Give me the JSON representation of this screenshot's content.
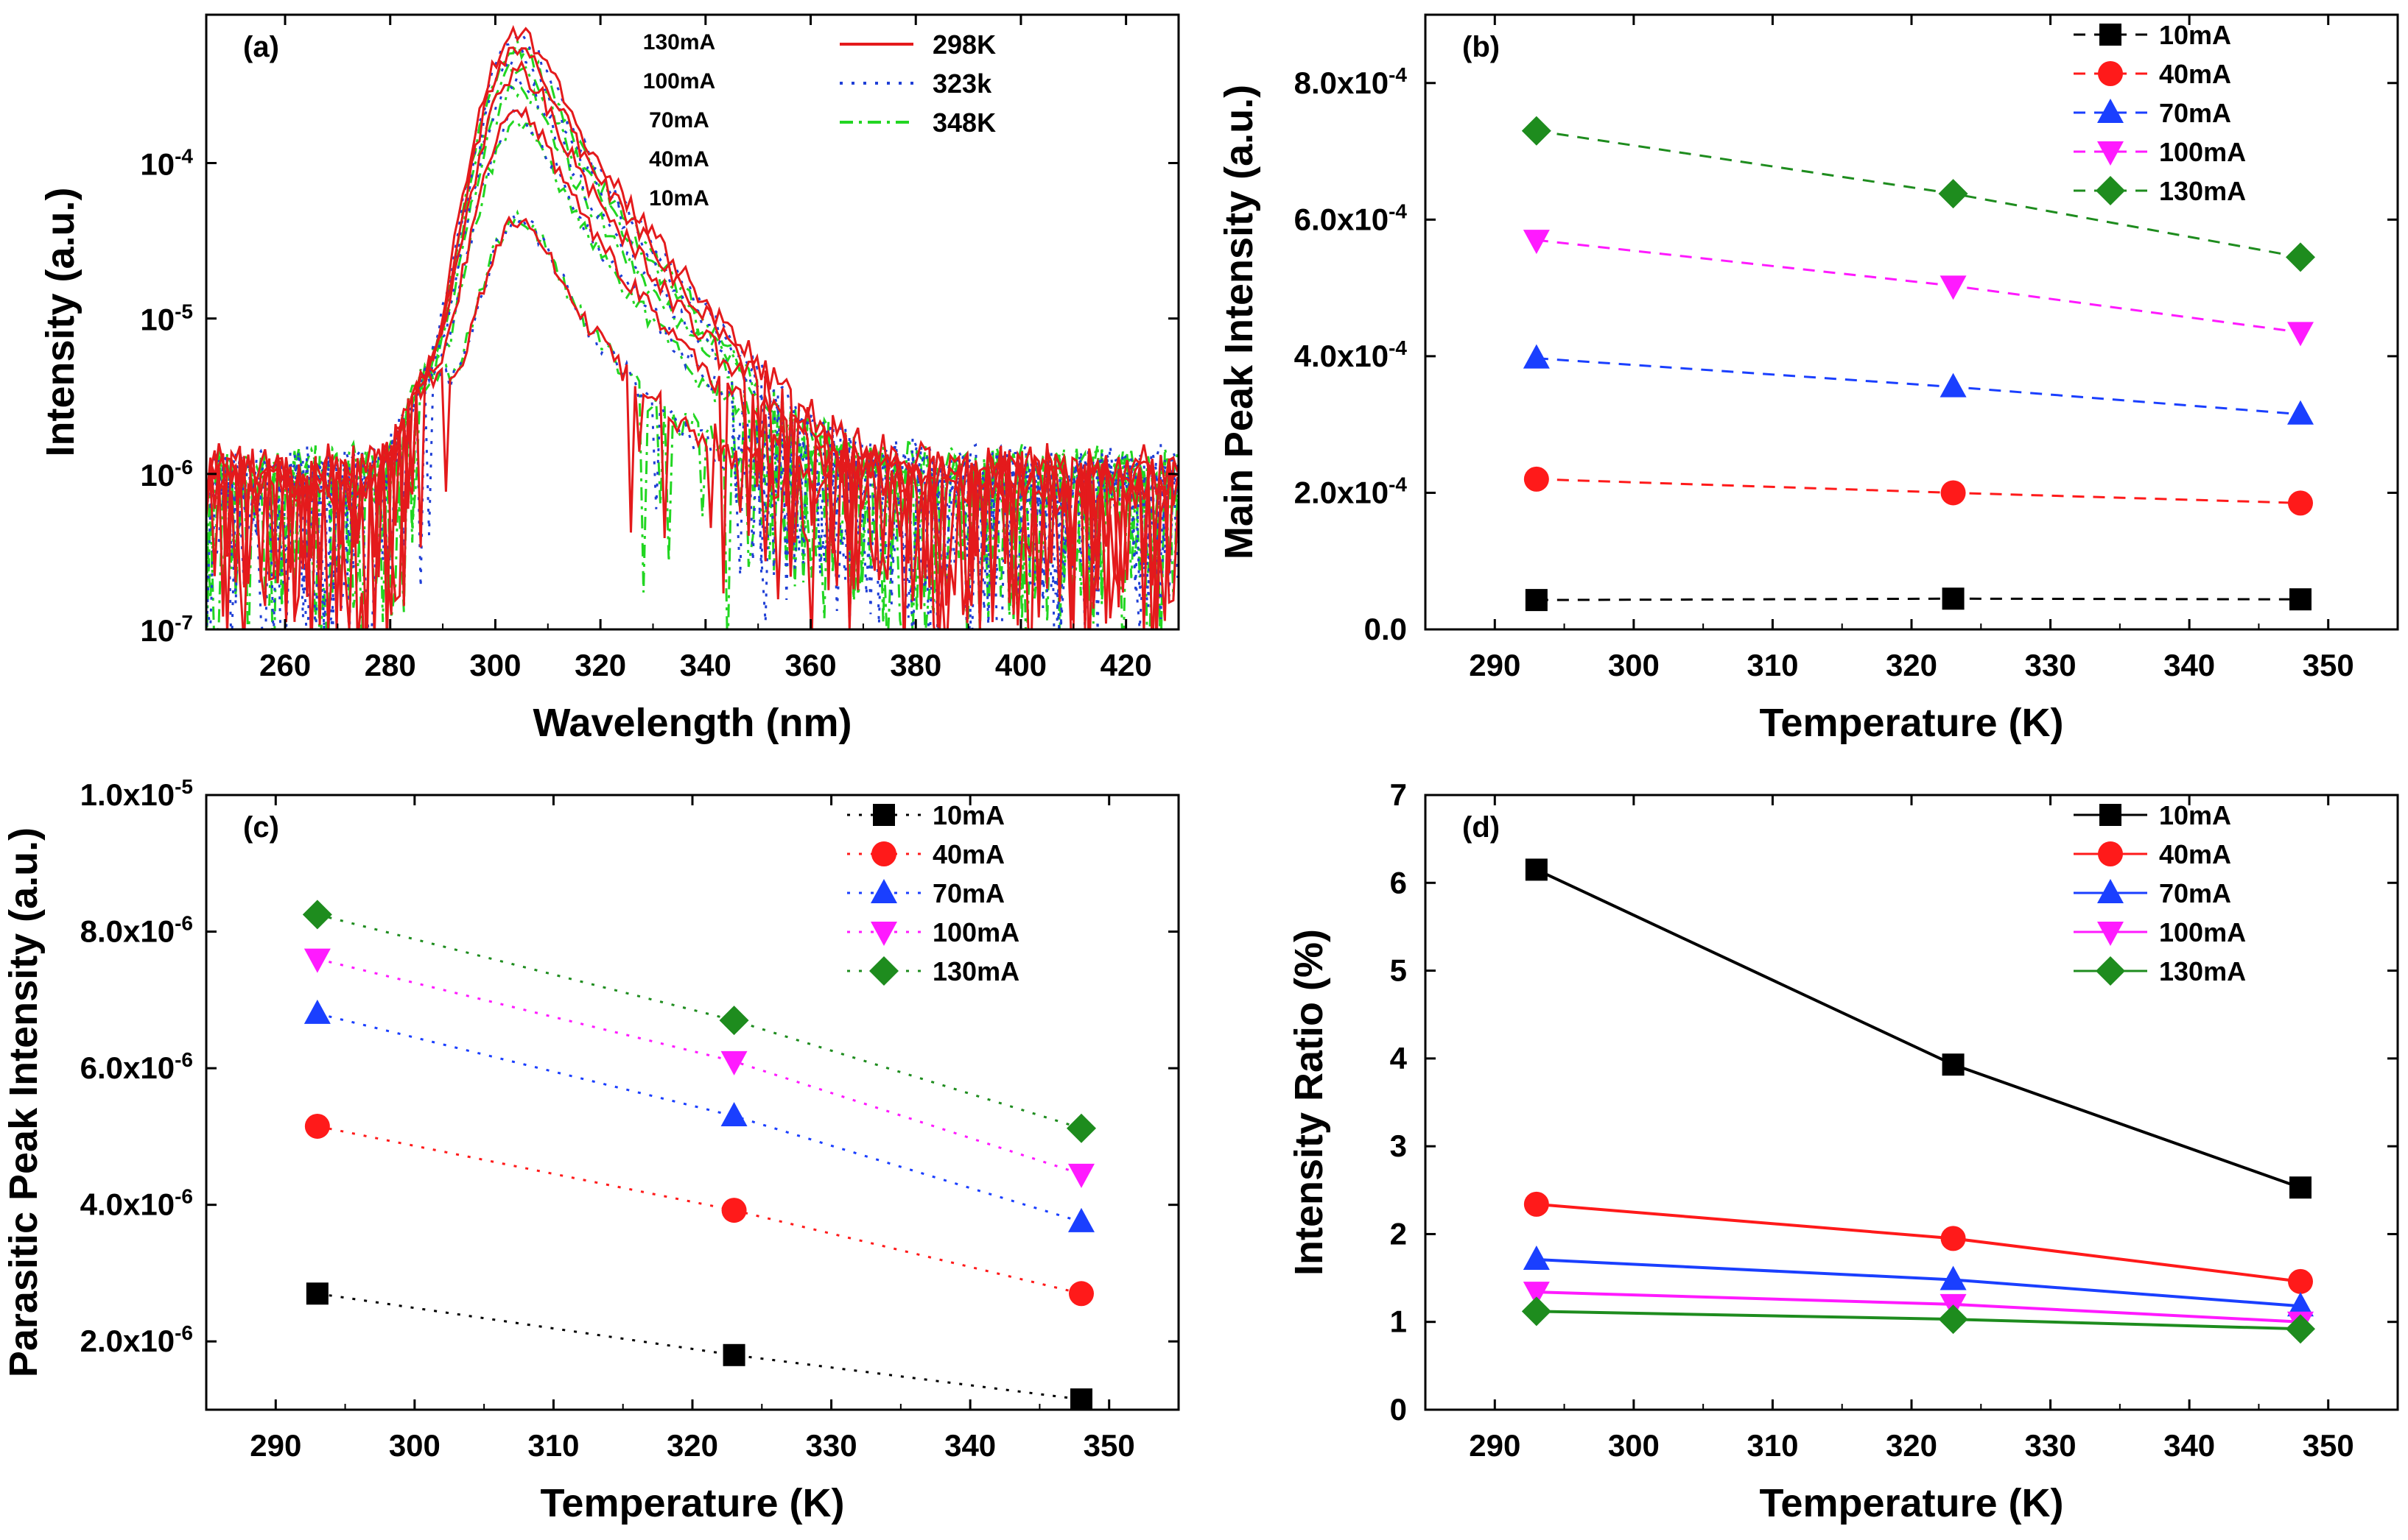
{
  "chart_data": [
    {
      "panel": "(a)",
      "type": "line",
      "xlabel": "Wavelength (nm)",
      "ylabel": "Intensity (a.u.)",
      "yscale": "log",
      "xlim": [
        245,
        430
      ],
      "ylim": [
        1e-07,
        0.0009
      ],
      "xticks": [
        260,
        280,
        300,
        320,
        340,
        360,
        380,
        400,
        420
      ],
      "yticks": [
        1e-07,
        1e-06,
        1e-05,
        0.0001
      ],
      "ytick_labels": [
        "10-7",
        "10-6",
        "10-5",
        "10-4"
      ],
      "legend": [
        {
          "name": "298K",
          "color": "#e41a1c",
          "style": "solid"
        },
        {
          "name": "323k",
          "color": "#1f3fd6",
          "style": "dotted"
        },
        {
          "name": "348K",
          "color": "#22d622",
          "style": "dashdot"
        }
      ],
      "annotations": [
        "130mA",
        "100mA",
        "70mA",
        "40mA",
        "10mA"
      ],
      "currents_mA": [
        130,
        100,
        70,
        40,
        10
      ],
      "peak_wavelength": 305,
      "peak_intensities": {
        "298K": [
          0.00073,
          0.00057,
          0.0004,
          0.00022,
          4.4e-05
        ],
        "323k": [
          0.00064,
          0.0005,
          0.00035,
          0.0002,
          4.4e-05
        ],
        "348K": [
          0.00055,
          0.00044,
          0.00031,
          0.000185,
          4.4e-05
        ]
      },
      "parasitic_peak_wavelength": 288,
      "noise_floor": 1e-06
    },
    {
      "panel": "(b)",
      "type": "line",
      "xlabel": "Temperature (K)",
      "ylabel": "Main Peak Intensity (a.u.)",
      "xlim": [
        285,
        355
      ],
      "ylim": [
        0,
        0.0009
      ],
      "xticks": [
        290,
        300,
        310,
        320,
        330,
        340,
        350
      ],
      "yticks": [
        0,
        0.0002,
        0.0004,
        0.0006,
        0.0008
      ],
      "ytick_labels": [
        "0.0",
        "2.0x10-4",
        "4.0x10-4",
        "6.0x10-4",
        "8.0x10-4"
      ],
      "line_style": "dashed",
      "x": [
        293,
        323,
        348
      ],
      "series": [
        {
          "name": "10mA",
          "color": "#000000",
          "marker": "square",
          "values": [
            4.3e-05,
            4.5e-05,
            4.4e-05
          ]
        },
        {
          "name": "40mA",
          "color": "#ff1a1a",
          "marker": "circle",
          "values": [
            0.00022,
            0.0002,
            0.000185
          ]
        },
        {
          "name": "70mA",
          "color": "#1a3fff",
          "marker": "triangle-up",
          "values": [
            0.000397,
            0.000355,
            0.000315
          ]
        },
        {
          "name": "100mA",
          "color": "#ff1aff",
          "marker": "triangle-down",
          "values": [
            0.00057,
            0.000503,
            0.000435
          ]
        },
        {
          "name": "130mA",
          "color": "#1e8c1e",
          "marker": "diamond",
          "values": [
            0.00073,
            0.000638,
            0.000545
          ]
        }
      ]
    },
    {
      "panel": "(c)",
      "type": "line",
      "xlabel": "Temperature (K)",
      "ylabel": "Parasitic Peak Intensity (a.u.)",
      "xlim": [
        285,
        355
      ],
      "ylim": [
        1e-06,
        1e-05
      ],
      "xticks": [
        290,
        300,
        310,
        320,
        330,
        340,
        350
      ],
      "yticks": [
        2e-06,
        4e-06,
        6e-06,
        8e-06,
        1e-05
      ],
      "ytick_labels": [
        "2.0x10-6",
        "4.0x10-6",
        "6.0x10-6",
        "8.0x10-6",
        "1.0x10-5"
      ],
      "line_style": "dotted",
      "x": [
        293,
        323,
        348
      ],
      "series": [
        {
          "name": "10mA",
          "color": "#000000",
          "marker": "square",
          "values": [
            2.7e-06,
            1.8e-06,
            1.15e-06
          ]
        },
        {
          "name": "40mA",
          "color": "#ff1a1a",
          "marker": "circle",
          "values": [
            5.15e-06,
            3.92e-06,
            2.7e-06
          ]
        },
        {
          "name": "70mA",
          "color": "#1a3fff",
          "marker": "triangle-up",
          "values": [
            6.8e-06,
            5.3e-06,
            3.75e-06
          ]
        },
        {
          "name": "100mA",
          "color": "#ff1aff",
          "marker": "triangle-down",
          "values": [
            7.6e-06,
            6.1e-06,
            4.45e-06
          ]
        },
        {
          "name": "130mA",
          "color": "#1e8c1e",
          "marker": "diamond",
          "values": [
            8.25e-06,
            6.7e-06,
            5.12e-06
          ]
        }
      ]
    },
    {
      "panel": "(d)",
      "type": "line",
      "xlabel": "Temperature (K)",
      "ylabel": "Intensity Ratio (%)",
      "xlim": [
        285,
        355
      ],
      "ylim": [
        0,
        7
      ],
      "xticks": [
        290,
        300,
        310,
        320,
        330,
        340,
        350
      ],
      "yticks": [
        0,
        1,
        2,
        3,
        4,
        5,
        6,
        7
      ],
      "ytick_labels": [
        "0",
        "1",
        "2",
        "3",
        "4",
        "5",
        "6",
        "7"
      ],
      "line_style": "solid",
      "x": [
        293,
        323,
        348
      ],
      "series": [
        {
          "name": "10mA",
          "color": "#000000",
          "marker": "square",
          "values": [
            6.15,
            3.93,
            2.53
          ]
        },
        {
          "name": "40mA",
          "color": "#ff1a1a",
          "marker": "circle",
          "values": [
            2.34,
            1.95,
            1.46
          ]
        },
        {
          "name": "70mA",
          "color": "#1a3fff",
          "marker": "triangle-up",
          "values": [
            1.71,
            1.48,
            1.18
          ]
        },
        {
          "name": "100mA",
          "color": "#ff1aff",
          "marker": "triangle-down",
          "values": [
            1.34,
            1.2,
            1.0
          ]
        },
        {
          "name": "130mA",
          "color": "#1e8c1e",
          "marker": "diamond",
          "values": [
            1.12,
            1.03,
            0.92
          ]
        }
      ]
    }
  ]
}
